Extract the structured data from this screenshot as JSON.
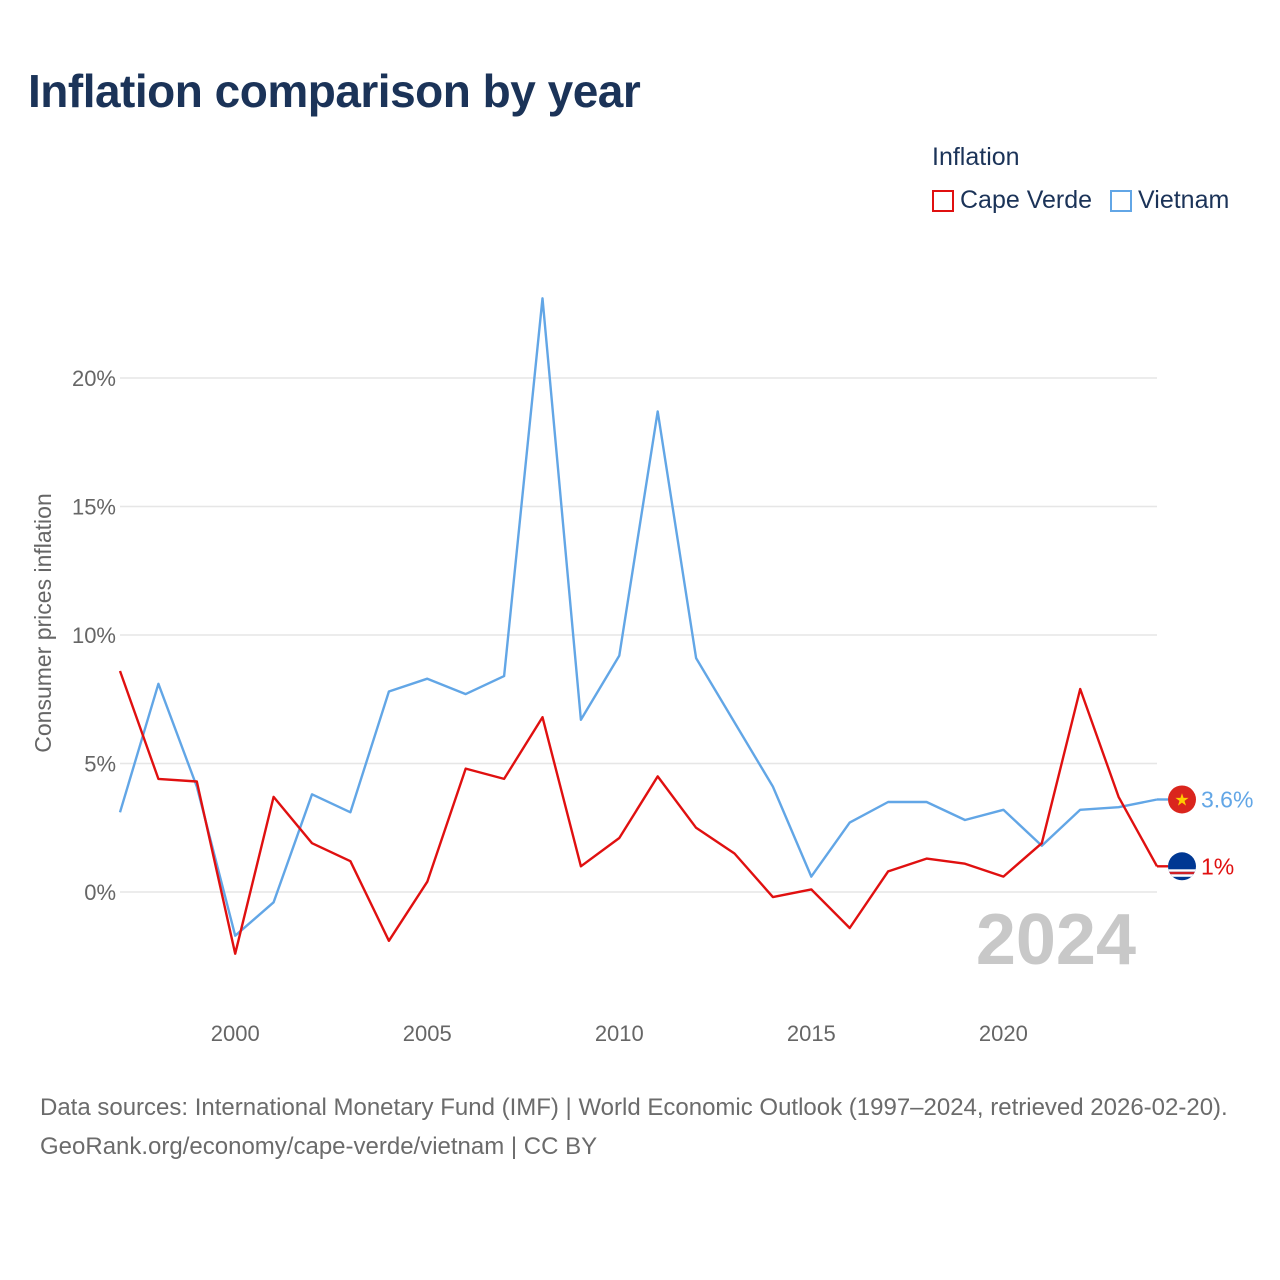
{
  "title": "Inflation comparison by year",
  "legend": {
    "title": "Inflation",
    "items": [
      {
        "name": "Cape Verde",
        "color": "#e01010"
      },
      {
        "name": "Vietnam",
        "color": "#62a6e6"
      }
    ]
  },
  "footer": {
    "sources": "Data sources: International Monetary Fund (IMF) | World Economic Outlook (1997–2024, retrieved 2026-02-20).",
    "link": "GeoRank.org/economy/cape-verde/vietnam | CC BY"
  },
  "chart_data": {
    "type": "line",
    "title": "Inflation comparison by year",
    "xlabel": "",
    "ylabel": "Consumer prices inflation",
    "x": [
      1997,
      1998,
      1999,
      2000,
      2001,
      2002,
      2003,
      2004,
      2005,
      2006,
      2007,
      2008,
      2009,
      2010,
      2011,
      2012,
      2013,
      2014,
      2015,
      2016,
      2017,
      2018,
      2019,
      2020,
      2021,
      2022,
      2023,
      2024
    ],
    "xlim": [
      1997,
      2024
    ],
    "ylim": [
      -3.5,
      25
    ],
    "x_ticks": [
      2000,
      2005,
      2010,
      2015,
      2020
    ],
    "x_tick_labels": [
      "2000",
      "2005",
      "2010",
      "2015",
      "2020"
    ],
    "y_ticks": [
      0,
      5,
      10,
      15,
      20
    ],
    "y_tick_labels": [
      "0%",
      "5%",
      "10%",
      "15%",
      "20%"
    ],
    "grid": true,
    "current_year_label": "2024",
    "series": [
      {
        "name": "Cape Verde",
        "color": "#e01010",
        "flag_icon": "cape-verde-flag-icon",
        "end_label": "1%",
        "values": [
          8.6,
          4.4,
          4.3,
          -2.4,
          3.7,
          1.9,
          1.2,
          -1.9,
          0.4,
          4.8,
          4.4,
          6.8,
          1.0,
          2.1,
          4.5,
          2.5,
          1.5,
          -0.2,
          0.1,
          -1.4,
          0.8,
          1.3,
          1.1,
          0.6,
          1.9,
          7.9,
          3.7,
          1.0
        ]
      },
      {
        "name": "Vietnam",
        "color": "#62a6e6",
        "flag_icon": "vietnam-flag-icon",
        "end_label": "3.6%",
        "values": [
          3.1,
          8.1,
          4.1,
          -1.7,
          -0.4,
          3.8,
          3.1,
          7.8,
          8.3,
          7.7,
          8.4,
          23.1,
          6.7,
          9.2,
          18.7,
          9.1,
          6.6,
          4.1,
          0.6,
          2.7,
          3.5,
          3.5,
          2.8,
          3.2,
          1.8,
          3.2,
          3.3,
          3.6
        ]
      }
    ]
  }
}
